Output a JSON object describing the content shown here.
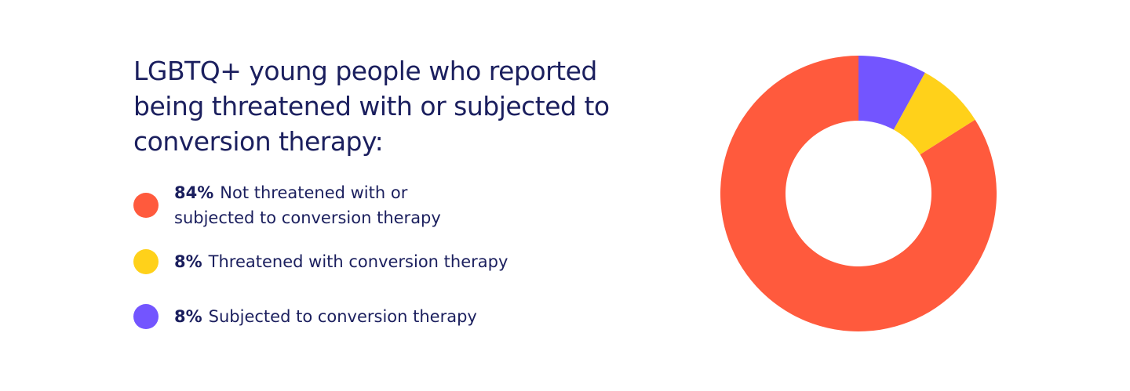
{
  "chart_data": {
    "type": "donut",
    "title": "LGBTQ+ young people who reported being threatened with or subjected to conversion therapy:",
    "categories": [
      "Not threatened with or subjected to conversion therapy",
      "Threatened with conversion therapy",
      "Subjected to conversion therapy"
    ],
    "values": [
      84,
      8,
      8
    ],
    "value_labels": [
      "84%",
      "8%",
      "8%"
    ],
    "colors": [
      "#ff5a3d",
      "#ffd11a",
      "#7355ff"
    ]
  }
}
